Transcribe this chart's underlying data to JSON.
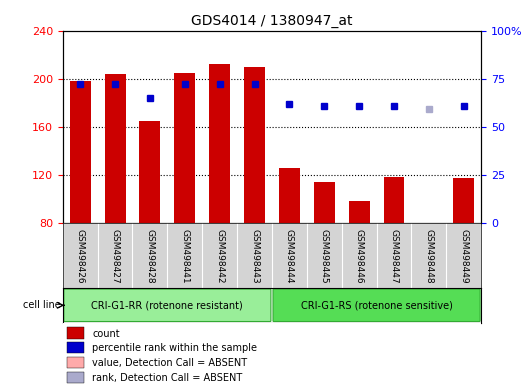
{
  "title": "GDS4014 / 1380947_at",
  "categories": [
    "GSM498426",
    "GSM498427",
    "GSM498428",
    "GSM498441",
    "GSM498442",
    "GSM498443",
    "GSM498444",
    "GSM498445",
    "GSM498446",
    "GSM498447",
    "GSM498448",
    "GSM498449"
  ],
  "bar_values": [
    198,
    204,
    165,
    205,
    212,
    210,
    126,
    114,
    98,
    118,
    80,
    117
  ],
  "bar_colors": [
    "#cc0000",
    "#cc0000",
    "#cc0000",
    "#cc0000",
    "#cc0000",
    "#cc0000",
    "#cc0000",
    "#cc0000",
    "#cc0000",
    "#cc0000",
    "#cc0000",
    "#cc0000"
  ],
  "absent_bar": [
    null,
    null,
    null,
    null,
    null,
    null,
    null,
    null,
    null,
    null,
    true,
    null
  ],
  "absent_bar_value": [
    null,
    null,
    null,
    null,
    null,
    null,
    null,
    null,
    null,
    null,
    80,
    null
  ],
  "percentile_values": [
    72,
    72,
    65,
    72,
    72,
    72,
    62,
    61,
    61,
    61,
    null,
    61
  ],
  "absent_rank_value": [
    null,
    null,
    null,
    null,
    null,
    null,
    null,
    null,
    null,
    null,
    59,
    null
  ],
  "ylim_left": [
    80,
    240
  ],
  "ylim_right": [
    0,
    100
  ],
  "yticks_left": [
    80,
    120,
    160,
    200,
    240
  ],
  "yticks_right": [
    0,
    25,
    50,
    75,
    100
  ],
  "group1_label": "CRI-G1-RR (rotenone resistant)",
  "group2_label": "CRI-G1-RS (rotenone sensitive)",
  "group1_indices": [
    0,
    5
  ],
  "group2_indices": [
    6,
    11
  ],
  "cell_line_label": "cell line",
  "legend_items": [
    {
      "label": "count",
      "color": "#cc0000",
      "marker": "s"
    },
    {
      "label": "percentile rank within the sample",
      "color": "#0000cc",
      "marker": "s"
    },
    {
      "label": "value, Detection Call = ABSENT",
      "color": "#ffaaaa",
      "marker": "s"
    },
    {
      "label": "rank, Detection Call = ABSENT",
      "color": "#aaaacc",
      "marker": "s"
    }
  ],
  "bar_width": 0.6,
  "background_color": "#ffffff",
  "plot_bg": "#ffffff",
  "grid_color": "#000000",
  "tick_area_bg": "#d0d0d0"
}
